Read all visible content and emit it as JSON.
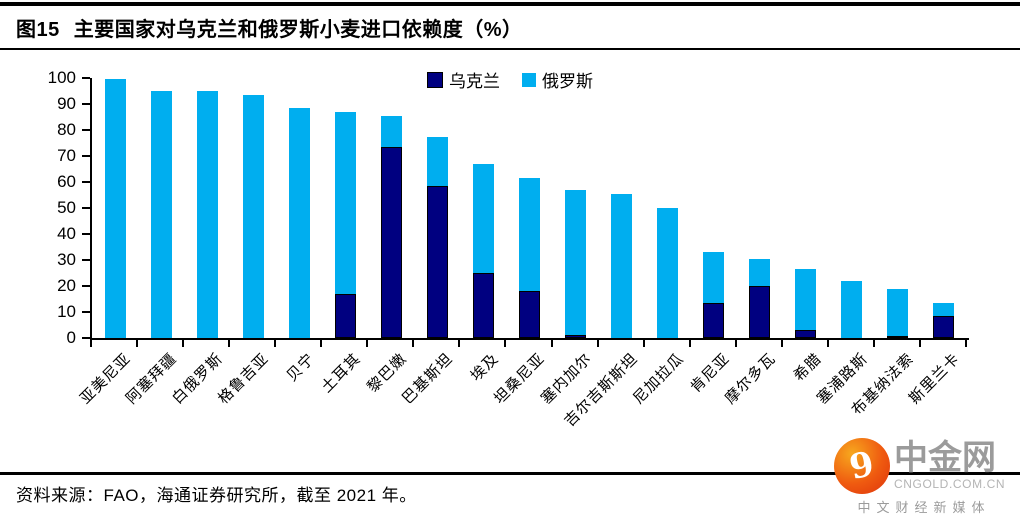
{
  "header": {
    "figure_no": "图15",
    "title": "主要国家对乌克兰和俄罗斯小麦进口依赖度（%）"
  },
  "chart_data": {
    "type": "bar",
    "stacked": true,
    "orientation": "vertical",
    "grid": false,
    "legend_position": "top-center",
    "ylim": [
      0,
      100
    ],
    "ytick_step": 10,
    "yticks": [
      100,
      90,
      80,
      70,
      60,
      50,
      40,
      30,
      20,
      10,
      0
    ],
    "categories": [
      "亚美尼亚",
      "阿塞拜疆",
      "白俄罗斯",
      "格鲁吉亚",
      "贝宁",
      "土耳其",
      "黎巴嫩",
      "巴基斯坦",
      "埃及",
      "坦桑尼亚",
      "塞内加尔",
      "吉尔吉斯斯坦",
      "尼加拉瓜",
      "肯尼亚",
      "摩尔多瓦",
      "希腊",
      "塞浦路斯",
      "布基纳法索",
      "斯里兰卡"
    ],
    "series": [
      {
        "name": "乌克兰",
        "color": "#000080",
        "values": [
          0,
          0,
          0,
          0,
          0,
          17,
          73.5,
          58.5,
          25,
          18,
          1,
          0,
          0,
          13.5,
          20,
          3,
          0,
          0.5,
          8.5
        ]
      },
      {
        "name": "俄罗斯",
        "color": "#00AEEF",
        "values": [
          99.5,
          95,
          95,
          93.5,
          88.5,
          70,
          12,
          19,
          42,
          43.5,
          56,
          55.5,
          50,
          19.5,
          10.5,
          23.5,
          22,
          18.5,
          5
        ]
      }
    ]
  },
  "footer": {
    "source": "资料来源：FAO，海通证券研究所，截至 2021 年。"
  },
  "watermark": {
    "brand": "中金网",
    "domain": "CNGOLD.COM.CN",
    "tagline": "中文财经新媒体",
    "logo_glyph": "9",
    "logo_color": "#EF5A10"
  },
  "colors": {
    "ukraine": "#000080",
    "russia": "#00AEEF",
    "axis": "#000000",
    "watermark_gray": "#9b9b9b"
  }
}
